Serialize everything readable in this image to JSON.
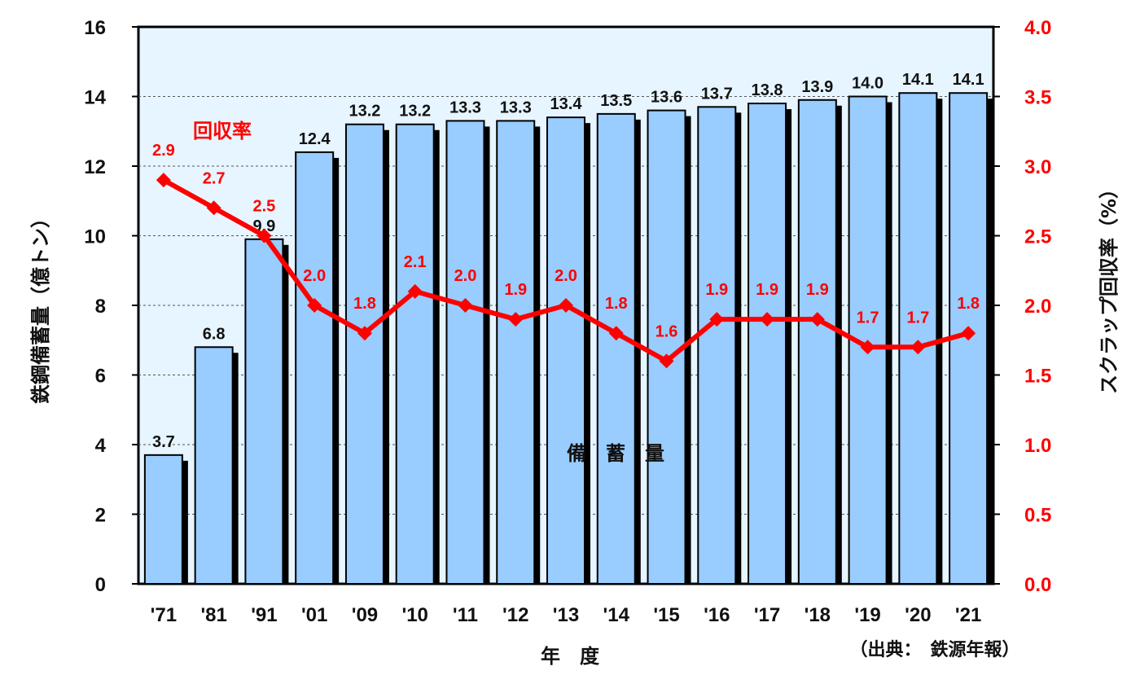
{
  "chart_data": {
    "type": "bar",
    "categories": [
      "'71",
      "'81",
      "'91",
      "'01",
      "'09",
      "'10",
      "'11",
      "'12",
      "'13",
      "'14",
      "'15",
      "'16",
      "'17",
      "'18",
      "'19",
      "'20",
      "'21"
    ],
    "series": [
      {
        "name": "備　蓄　量",
        "type": "bar",
        "axis": "left",
        "values": [
          3.7,
          6.8,
          9.9,
          12.4,
          13.2,
          13.2,
          13.3,
          13.3,
          13.4,
          13.5,
          13.6,
          13.7,
          13.8,
          13.9,
          14.0,
          14.1,
          14.1
        ],
        "labels": [
          "3.7",
          "6.8",
          "9.9",
          "12.4",
          "13.2",
          "13.2",
          "13.3",
          "13.3",
          "13.4",
          "13.5",
          "13.6",
          "13.7",
          "13.8",
          "13.9",
          "14.0",
          "14.1",
          "14.1"
        ]
      },
      {
        "name": "回収率",
        "type": "line",
        "axis": "right",
        "values": [
          2.9,
          2.7,
          2.5,
          2.0,
          1.8,
          2.1,
          2.0,
          1.9,
          2.0,
          1.8,
          1.6,
          1.9,
          1.9,
          1.9,
          1.7,
          1.7,
          1.8
        ],
        "labels": [
          "2.9",
          "2.7",
          "2.5",
          "2.0",
          "1.8",
          "2.1",
          "2.0",
          "1.9",
          "2.0",
          "1.8",
          "1.6",
          "1.9",
          "1.9",
          "1.9",
          "1.7",
          "1.7",
          "1.8"
        ]
      }
    ],
    "xlabel": "年　度",
    "ylabel": "鉄鋼備蓄量（億トン）",
    "ylabel_right": "スクラップ回収率（%）",
    "ylim": [
      0,
      16
    ],
    "ylim_right": [
      0,
      4
    ],
    "yticks": [
      "0",
      "2",
      "4",
      "6",
      "8",
      "10",
      "12",
      "14",
      "16"
    ],
    "yticks_right": [
      "0.0",
      "0.5",
      "1.0",
      "1.5",
      "2.0",
      "2.5",
      "3.0",
      "3.5",
      "4.0"
    ],
    "grid": "horizontal dashed",
    "source": "（出典：　鉄源年報）",
    "colors": {
      "bar": "#99ccff",
      "line": "#ff0000",
      "plot_bg": "#e6f5ff",
      "right_axis": "#ff0000"
    }
  }
}
